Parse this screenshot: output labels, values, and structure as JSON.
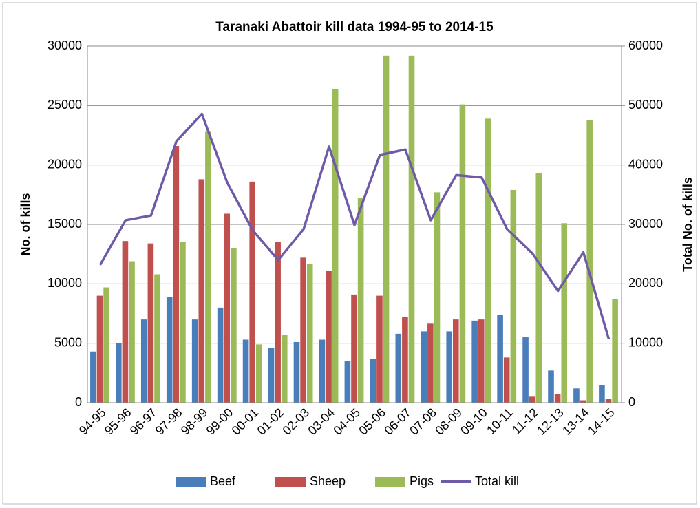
{
  "chart_data": {
    "type": "bar-line",
    "title": "Taranaki  Abattoir kill data 1994-95 to 2014-15",
    "y_label": "No. of kills",
    "y2_label": "Total No. of kills",
    "categories": [
      "94-95",
      "95-96",
      "96-97",
      "97-98",
      "98-99",
      "99-00",
      "00-01",
      "01-02",
      "02-03",
      "03-04",
      "04-05",
      "05-06",
      "06-07",
      "07-08",
      "08-09",
      "09-10",
      "10-11",
      "11-12",
      "12-13",
      "13-14",
      "14-15"
    ],
    "ylim": [
      0,
      30000
    ],
    "yticks": [
      0,
      5000,
      10000,
      15000,
      20000,
      25000,
      30000
    ],
    "y2lim": [
      0,
      60000
    ],
    "y2ticks": [
      0,
      10000,
      20000,
      30000,
      40000,
      50000,
      60000
    ],
    "grid": true,
    "legend": "bottom",
    "series": [
      {
        "name": "Beef",
        "type": "bar",
        "color": "#4a7ebb",
        "values": [
          4300,
          5000,
          7000,
          8900,
          7000,
          8000,
          5300,
          4600,
          5100,
          5300,
          3500,
          3700,
          5800,
          6000,
          6000,
          6900,
          7400,
          5500,
          2700,
          1200,
          1500
        ]
      },
      {
        "name": "Sheep",
        "type": "bar",
        "color": "#c0504d",
        "values": [
          9000,
          13600,
          13400,
          21600,
          18800,
          15900,
          18600,
          13500,
          12200,
          11100,
          9100,
          9000,
          7200,
          6700,
          7000,
          7000,
          3800,
          500,
          700,
          200,
          300
        ]
      },
      {
        "name": "Pigs",
        "type": "bar",
        "color": "#9bbb59",
        "values": [
          9700,
          11900,
          10800,
          13500,
          22800,
          13000,
          4900,
          5700,
          11700,
          26400,
          17200,
          29200,
          29200,
          17700,
          25100,
          23900,
          17900,
          19300,
          15100,
          23800,
          8700
        ]
      },
      {
        "name": "Total kill",
        "type": "line",
        "axis": "y2",
        "color": "#6f5aa8",
        "values": [
          23200,
          30700,
          31500,
          44000,
          48600,
          37000,
          29000,
          24000,
          29200,
          43100,
          29900,
          41700,
          42600,
          30700,
          38300,
          37900,
          29200,
          25100,
          18800,
          25300,
          10700
        ]
      }
    ]
  }
}
